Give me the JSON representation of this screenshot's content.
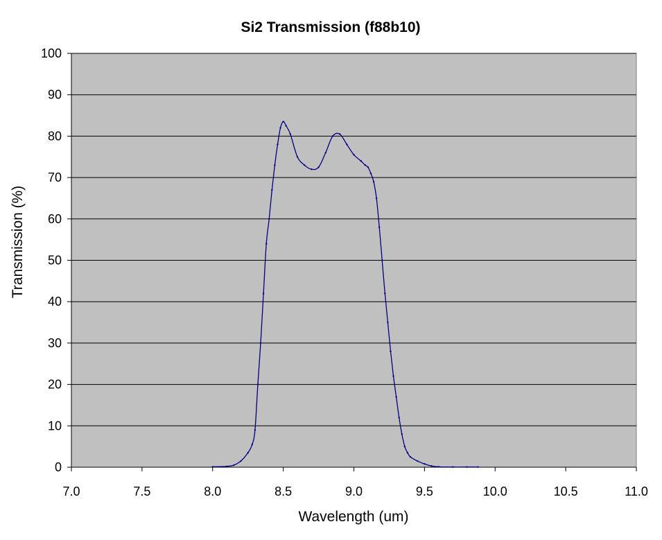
{
  "chart_data": {
    "type": "line",
    "title": "Si2 Transmission (f88b10)",
    "xlabel": "Wavelength (um)",
    "ylabel": "Transmission (%)",
    "xlim": [
      7.0,
      11.0
    ],
    "ylim": [
      0,
      100
    ],
    "x_ticks": [
      "7.0",
      "7.5",
      "8.0",
      "8.5",
      "9.0",
      "9.5",
      "10.0",
      "10.5",
      "11.0"
    ],
    "y_ticks": [
      "0",
      "10",
      "20",
      "30",
      "40",
      "50",
      "60",
      "70",
      "80",
      "90",
      "100"
    ],
    "grid": "horizontal",
    "legend": "none",
    "colors": {
      "plot_background": "#c0c0c0",
      "line": "#000080",
      "gridline": "#000000"
    },
    "series": [
      {
        "x": [
          8.0,
          8.1,
          8.15,
          8.2,
          8.25,
          8.28,
          8.3,
          8.32,
          8.34,
          8.36,
          8.38,
          8.4,
          8.42,
          8.44,
          8.46,
          8.48,
          8.5,
          8.52,
          8.55,
          8.6,
          8.65,
          8.7,
          8.75,
          8.8,
          8.85,
          8.9,
          8.95,
          9.0,
          9.05,
          9.08,
          9.1,
          9.12,
          9.14,
          9.16,
          9.18,
          9.2,
          9.22,
          9.24,
          9.26,
          9.28,
          9.3,
          9.32,
          9.34,
          9.36,
          9.38,
          9.4,
          9.45,
          9.5,
          9.55,
          9.6,
          9.7,
          9.8,
          9.88
        ],
        "y": [
          0.1,
          0.2,
          0.5,
          1.5,
          3.5,
          5.5,
          9,
          20,
          30,
          42,
          54,
          60,
          67,
          73,
          78,
          82,
          83.5,
          82.5,
          80.5,
          75,
          73,
          72,
          72.5,
          76,
          80,
          80.5,
          78,
          75.5,
          74,
          73,
          72.5,
          71,
          69,
          65,
          58,
          50,
          42,
          35,
          28,
          22,
          17,
          12,
          8,
          5,
          3.5,
          2.5,
          1.5,
          0.8,
          0.3,
          0.1,
          0.05,
          0.05,
          0.05
        ]
      }
    ]
  }
}
